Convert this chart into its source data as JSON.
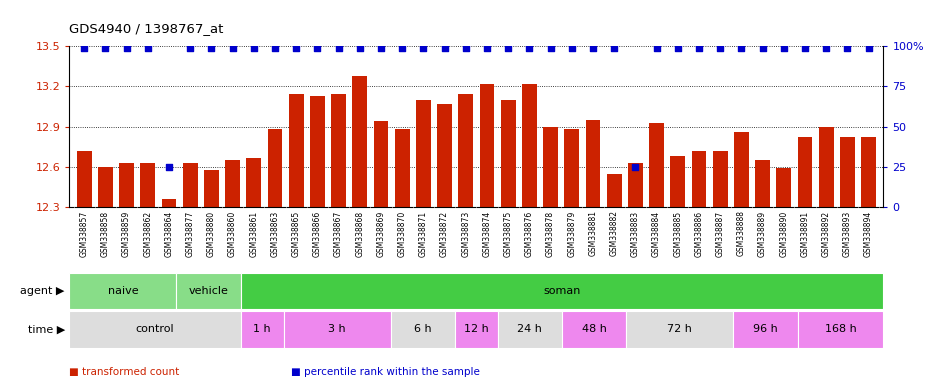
{
  "title": "GDS4940 / 1398767_at",
  "samples": [
    "GSM338857",
    "GSM338858",
    "GSM338859",
    "GSM338862",
    "GSM338864",
    "GSM338877",
    "GSM338880",
    "GSM338860",
    "GSM338861",
    "GSM338863",
    "GSM338865",
    "GSM338866",
    "GSM338867",
    "GSM338868",
    "GSM338869",
    "GSM338870",
    "GSM338871",
    "GSM338872",
    "GSM338873",
    "GSM338874",
    "GSM338875",
    "GSM338876",
    "GSM338878",
    "GSM338879",
    "GSM338881",
    "GSM338882",
    "GSM338883",
    "GSM338884",
    "GSM338885",
    "GSM338886",
    "GSM338887",
    "GSM338888",
    "GSM338889",
    "GSM338890",
    "GSM338891",
    "GSM338892",
    "GSM338893",
    "GSM338894"
  ],
  "bar_values": [
    12.72,
    12.6,
    12.63,
    12.63,
    12.36,
    12.63,
    12.58,
    12.65,
    12.67,
    12.88,
    13.14,
    13.13,
    13.14,
    13.28,
    12.94,
    12.88,
    13.1,
    13.07,
    13.14,
    13.22,
    13.1,
    13.22,
    12.9,
    12.88,
    12.95,
    12.55,
    12.63,
    12.93,
    12.68,
    12.72,
    12.72,
    12.86,
    12.65,
    12.59,
    12.82,
    12.9,
    12.82,
    12.82
  ],
  "percentile_values": [
    99,
    99,
    99,
    99,
    25,
    99,
    99,
    99,
    99,
    99,
    99,
    99,
    99,
    99,
    99,
    99,
    99,
    99,
    99,
    99,
    99,
    99,
    99,
    99,
    99,
    99,
    25,
    99,
    99,
    99,
    99,
    99,
    99,
    99,
    99,
    99,
    99,
    99
  ],
  "ylim_left": [
    12.3,
    13.5
  ],
  "ylim_right": [
    0,
    100
  ],
  "bar_color": "#cc2200",
  "percentile_color": "#0000cc",
  "bg_color": "#ffffff",
  "xtick_bg": "#cccccc",
  "agent_groups": [
    {
      "label": "naive",
      "start": 0,
      "end": 4,
      "color": "#88dd88"
    },
    {
      "label": "vehicle",
      "start": 5,
      "end": 7,
      "color": "#88dd88"
    },
    {
      "label": "soman",
      "start": 8,
      "end": 37,
      "color": "#44cc44"
    }
  ],
  "time_groups": [
    {
      "label": "control",
      "start": 0,
      "end": 7,
      "color": "#dddddd"
    },
    {
      "label": "1 h",
      "start": 8,
      "end": 9,
      "color": "#ee88ee"
    },
    {
      "label": "3 h",
      "start": 10,
      "end": 14,
      "color": "#ee88ee"
    },
    {
      "label": "6 h",
      "start": 15,
      "end": 17,
      "color": "#dddddd"
    },
    {
      "label": "12 h",
      "start": 18,
      "end": 19,
      "color": "#ee88ee"
    },
    {
      "label": "24 h",
      "start": 20,
      "end": 22,
      "color": "#dddddd"
    },
    {
      "label": "48 h",
      "start": 23,
      "end": 25,
      "color": "#ee88ee"
    },
    {
      "label": "72 h",
      "start": 26,
      "end": 30,
      "color": "#dddddd"
    },
    {
      "label": "96 h",
      "start": 31,
      "end": 33,
      "color": "#ee88ee"
    },
    {
      "label": "168 h",
      "start": 34,
      "end": 37,
      "color": "#ee88ee"
    }
  ],
  "left_yticks": [
    12.3,
    12.6,
    12.9,
    13.2,
    13.5
  ],
  "right_yticks": [
    0,
    25,
    50,
    75,
    100
  ],
  "right_ytick_labels": [
    "0",
    "25",
    "50",
    "75",
    "100%"
  ],
  "legend_items": [
    {
      "label": "transformed count",
      "color": "#cc2200"
    },
    {
      "label": "percentile rank within the sample",
      "color": "#0000cc"
    }
  ]
}
